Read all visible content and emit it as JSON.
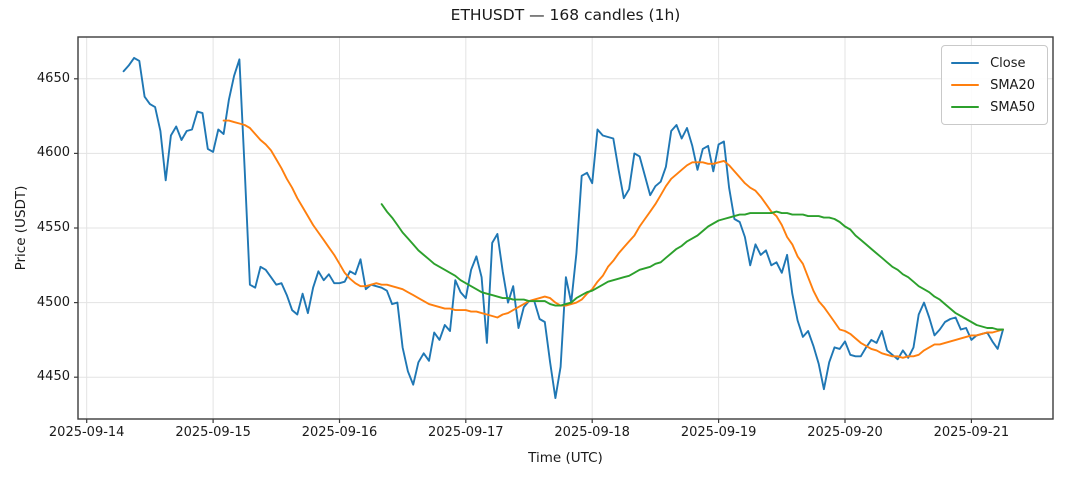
{
  "figure": {
    "title": "ETHUSDT — 168 candles (1h)",
    "xlabel": "Time (UTC)",
    "ylabel": "Price (USDT)"
  },
  "legend": {
    "position": "upper right",
    "entries": [
      {
        "label": "Close",
        "color": "#1f77b4"
      },
      {
        "label": "SMA20",
        "color": "#ff7f0e"
      },
      {
        "label": "SMA50",
        "color": "#2ca02c"
      }
    ]
  },
  "chart_data": {
    "type": "line",
    "title": "ETHUSDT — 168 candles (1h)",
    "xlabel": "Time (UTC)",
    "ylabel": "Price (USDT)",
    "symbol": "ETHUSDT",
    "n_points": 168,
    "interval": "1h",
    "x_start_utc": "2025-09-14 07:00",
    "x_end_utc": "2025-09-21 06:00",
    "grid": true,
    "legend_position": "upper right",
    "x_tick_labels": [
      "2025-09-14",
      "2025-09-15",
      "2025-09-16",
      "2025-09-17",
      "2025-09-18",
      "2025-09-19",
      "2025-09-20",
      "2025-09-21"
    ],
    "x_tick_hours": [
      0,
      24,
      48,
      72,
      96,
      120,
      144,
      168
    ],
    "x_first_point_hour": 7,
    "xlim_hours": [
      -1.65,
      183.5
    ],
    "y_ticks": [
      4450,
      4500,
      4550,
      4600,
      4650
    ],
    "ylim": [
      4422,
      4678
    ],
    "series": [
      {
        "name": "Close",
        "color": "#1f77b4",
        "values": [
          4655,
          4659,
          4664,
          4662,
          4638,
          4633,
          4631,
          4615,
          4582,
          4612,
          4618,
          4609,
          4615,
          4616,
          4628,
          4627,
          4603,
          4601,
          4616,
          4613,
          4636,
          4652,
          4663,
          4589,
          4512,
          4510,
          4524,
          4522,
          4517,
          4512,
          4513,
          4505,
          4495,
          4492,
          4506,
          4493,
          4510,
          4521,
          4515,
          4519,
          4513,
          4513,
          4514,
          4521,
          4519,
          4529,
          4509,
          4512,
          4511,
          4510,
          4508,
          4499,
          4500,
          4470,
          4454,
          4445,
          4460,
          4466,
          4461,
          4480,
          4475,
          4485,
          4481,
          4515,
          4507,
          4503,
          4522,
          4531,
          4517,
          4473,
          4540,
          4546,
          4521,
          4500,
          4511,
          4483,
          4497,
          4501,
          4501,
          4489,
          4487,
          4460,
          4436,
          4457,
          4517,
          4500,
          4533,
          4585,
          4587,
          4580,
          4616,
          4612,
          4611,
          4610,
          4589,
          4570,
          4576,
          4600,
          4598,
          4585,
          4572,
          4578,
          4581,
          4591,
          4615,
          4619,
          4610,
          4617,
          4605,
          4589,
          4603,
          4605,
          4588,
          4606,
          4608,
          4577,
          4556,
          4554,
          4544,
          4525,
          4539,
          4532,
          4535,
          4525,
          4527,
          4520,
          4532,
          4506,
          4488,
          4477,
          4481,
          4471,
          4459,
          4442,
          4460,
          4470,
          4469,
          4474,
          4465,
          4464,
          4464,
          4470,
          4475,
          4473,
          4481,
          4468,
          4465,
          4462,
          4468,
          4463,
          4470,
          4492,
          4500,
          4490,
          4478,
          4482,
          4487,
          4489,
          4490,
          4482,
          4483,
          4475,
          4478,
          4479,
          4480,
          4474,
          4469,
          4482
        ]
      },
      {
        "name": "SMA20",
        "color": "#ff7f0e",
        "values": [
          null,
          null,
          null,
          null,
          null,
          null,
          null,
          null,
          null,
          null,
          null,
          null,
          null,
          null,
          null,
          null,
          null,
          null,
          null,
          4622,
          4622,
          4621,
          4620,
          4619,
          4617,
          4613,
          4609,
          4606,
          4602,
          4596,
          4590,
          4583,
          4577,
          4570,
          4564,
          4558,
          4552,
          4547,
          4542,
          4537,
          4532,
          4526,
          4520,
          4516,
          4513,
          4511,
          4511,
          4512,
          4513,
          4512,
          4512,
          4511,
          4510,
          4509,
          4507,
          4505,
          4503,
          4501,
          4499,
          4498,
          4497,
          4496,
          4496,
          4495,
          4495,
          4495,
          4494,
          4494,
          4493,
          4492,
          4491,
          4490,
          4492,
          4493,
          4495,
          4497,
          4499,
          4501,
          4502,
          4503,
          4504,
          4503,
          4500,
          4498,
          4498,
          4499,
          4500,
          4502,
          4506,
          4509,
          4514,
          4518,
          4524,
          4528,
          4533,
          4537,
          4541,
          4545,
          4551,
          4556,
          4561,
          4566,
          4572,
          4578,
          4583,
          4586,
          4589,
          4592,
          4594,
          4594,
          4594,
          4593,
          4593,
          4594,
          4595,
          4592,
          4588,
          4584,
          4580,
          4577,
          4575,
          4571,
          4566,
          4561,
          4558,
          4552,
          4544,
          4539,
          4531,
          4526,
          4517,
          4508,
          4501,
          4497,
          4492,
          4487,
          4482,
          4481,
          4479,
          4476,
          4473,
          4471,
          4469,
          4468,
          4466,
          4465,
          4464,
          4464,
          4463,
          4464,
          4464,
          4465,
          4468,
          4470,
          4472,
          4472,
          4473,
          4474,
          4475,
          4476,
          4477,
          4478,
          4478,
          4479,
          4480,
          4480,
          4481,
          4482
        ]
      },
      {
        "name": "SMA50",
        "color": "#2ca02c",
        "values": [
          null,
          null,
          null,
          null,
          null,
          null,
          null,
          null,
          null,
          null,
          null,
          null,
          null,
          null,
          null,
          null,
          null,
          null,
          null,
          null,
          null,
          null,
          null,
          null,
          null,
          null,
          null,
          null,
          null,
          null,
          null,
          null,
          null,
          null,
          null,
          null,
          null,
          null,
          null,
          null,
          null,
          null,
          null,
          null,
          null,
          null,
          null,
          null,
          null,
          4566,
          4561,
          4557,
          4552,
          4547,
          4543,
          4539,
          4535,
          4532,
          4529,
          4526,
          4524,
          4522,
          4520,
          4518,
          4515,
          4513,
          4511,
          4509,
          4507,
          4506,
          4505,
          4504,
          4503,
          4503,
          4502,
          4502,
          4502,
          4501,
          4501,
          4501,
          4501,
          4499,
          4498,
          4498,
          4499,
          4500,
          4503,
          4505,
          4507,
          4508,
          4510,
          4512,
          4514,
          4515,
          4516,
          4517,
          4518,
          4520,
          4522,
          4523,
          4524,
          4526,
          4527,
          4530,
          4533,
          4536,
          4538,
          4541,
          4543,
          4545,
          4548,
          4551,
          4553,
          4555,
          4556,
          4557,
          4558,
          4559,
          4559,
          4560,
          4560,
          4560,
          4560,
          4560,
          4561,
          4560,
          4560,
          4559,
          4559,
          4559,
          4558,
          4558,
          4558,
          4557,
          4557,
          4556,
          4554,
          4551,
          4549,
          4545,
          4542,
          4539,
          4536,
          4533,
          4530,
          4527,
          4524,
          4522,
          4519,
          4517,
          4514,
          4511,
          4509,
          4507,
          4504,
          4502,
          4499,
          4496,
          4493,
          4491,
          4489,
          4487,
          4485,
          4484,
          4483,
          4483,
          4482,
          4482
        ]
      }
    ]
  },
  "style": {
    "spine_color": "#3c3c3c",
    "grid_color": "#e3e3e3",
    "tick_color": "#3c3c3c",
    "line_width": 1.9
  }
}
